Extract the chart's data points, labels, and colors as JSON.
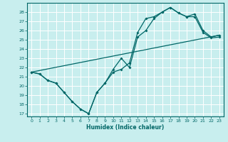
{
  "xlabel": "Humidex (Indice chaleur)",
  "bg_color": "#c8eeee",
  "grid_color": "#ffffff",
  "line_color": "#006666",
  "xlim": [
    -0.5,
    23.5
  ],
  "ylim": [
    16.7,
    29.0
  ],
  "yticks": [
    17,
    18,
    19,
    20,
    21,
    22,
    23,
    24,
    25,
    26,
    27,
    28
  ],
  "xticks": [
    0,
    1,
    2,
    3,
    4,
    5,
    6,
    7,
    8,
    9,
    10,
    11,
    12,
    13,
    14,
    15,
    16,
    17,
    18,
    19,
    20,
    21,
    22,
    23
  ],
  "line1_x": [
    0,
    1,
    2,
    3,
    4,
    5,
    6,
    7,
    8,
    9,
    10,
    11,
    12,
    13,
    14,
    15,
    16,
    17,
    18,
    19,
    20,
    21,
    22,
    23
  ],
  "line1_y": [
    21.5,
    21.3,
    20.6,
    20.3,
    19.3,
    18.3,
    17.5,
    17.0,
    19.3,
    20.3,
    21.5,
    21.8,
    22.5,
    25.8,
    27.3,
    27.5,
    28.0,
    28.5,
    27.9,
    27.5,
    27.5,
    25.8,
    25.2,
    25.3
  ],
  "line2_x": [
    0,
    1,
    2,
    3,
    4,
    5,
    6,
    7,
    8,
    9,
    10,
    11,
    12,
    13,
    14,
    15,
    16,
    17,
    18,
    19,
    20,
    21,
    22,
    23
  ],
  "line2_y": [
    21.5,
    21.3,
    20.6,
    20.3,
    19.3,
    18.3,
    17.5,
    17.0,
    19.3,
    20.3,
    21.8,
    23.0,
    22.0,
    25.3,
    26.0,
    27.3,
    28.0,
    28.5,
    27.9,
    27.5,
    27.8,
    26.0,
    25.3,
    25.5
  ],
  "line3_x": [
    0,
    23
  ],
  "line3_y": [
    21.5,
    25.5
  ]
}
